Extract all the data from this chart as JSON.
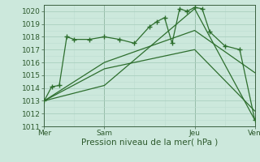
{
  "bg_color": "#cce8dc",
  "grid_color_major": "#aacfbf",
  "grid_color_minor": "#bcddd0",
  "line_color": "#2d6e2d",
  "marker_color": "#2d6e2d",
  "xlabel": "Pression niveau de la mer( hPa )",
  "ylim": [
    1011,
    1020.5
  ],
  "yticks": [
    1011,
    1012,
    1013,
    1014,
    1015,
    1016,
    1017,
    1018,
    1019,
    1020
  ],
  "xtick_labels": [
    "Mer",
    "Sam",
    "Jeu",
    "Ven"
  ],
  "xtick_positions": [
    0,
    4,
    10,
    14
  ],
  "xlim": [
    0,
    14
  ],
  "vlines": [
    0,
    4,
    10,
    14
  ],
  "series": [
    {
      "x": [
        0,
        0.5,
        1,
        1.5,
        2,
        3,
        4,
        5,
        6,
        7,
        7.5,
        8,
        8.5,
        9,
        9.5,
        10,
        10.5,
        11,
        12,
        13,
        14
      ],
      "y": [
        1013.0,
        1014.1,
        1014.2,
        1018.0,
        1017.8,
        1017.8,
        1018.0,
        1017.8,
        1017.5,
        1018.8,
        1019.2,
        1019.5,
        1017.5,
        1020.2,
        1020.0,
        1020.3,
        1020.2,
        1018.4,
        1017.3,
        1017.0,
        1011.5
      ],
      "markers": true
    },
    {
      "x": [
        0,
        4,
        10,
        14
      ],
      "y": [
        1013.0,
        1014.2,
        1020.2,
        1011.5
      ],
      "markers": false
    },
    {
      "x": [
        0,
        4,
        10,
        14
      ],
      "y": [
        1013.0,
        1015.5,
        1017.0,
        1012.2
      ],
      "markers": false
    },
    {
      "x": [
        0,
        4,
        10,
        14
      ],
      "y": [
        1013.0,
        1016.0,
        1018.5,
        1015.2
      ],
      "markers": false
    }
  ]
}
